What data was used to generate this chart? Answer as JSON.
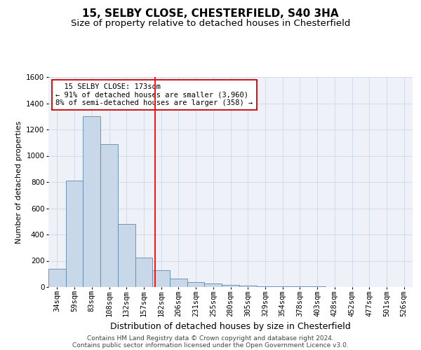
{
  "title1": "15, SELBY CLOSE, CHESTERFIELD, S40 3HA",
  "title2": "Size of property relative to detached houses in Chesterfield",
  "xlabel": "Distribution of detached houses by size in Chesterfield",
  "ylabel": "Number of detached properties",
  "categories": [
    "34sqm",
    "59sqm",
    "83sqm",
    "108sqm",
    "132sqm",
    "157sqm",
    "182sqm",
    "206sqm",
    "231sqm",
    "255sqm",
    "280sqm",
    "305sqm",
    "329sqm",
    "354sqm",
    "378sqm",
    "403sqm",
    "428sqm",
    "452sqm",
    "477sqm",
    "501sqm",
    "526sqm"
  ],
  "values": [
    140,
    810,
    1300,
    1090,
    480,
    225,
    130,
    65,
    35,
    25,
    18,
    12,
    8,
    5,
    5,
    5,
    2,
    2,
    2,
    2,
    2
  ],
  "bar_color": "#c8d8e8",
  "bar_edge_color": "#5a8ab0",
  "grid_color": "#d0d8e8",
  "background_color": "#eef2f8",
  "red_line_x": 5.64,
  "annotation_text": "  15 SELBY CLOSE: 173sqm\n← 91% of detached houses are smaller (3,960)\n8% of semi-detached houses are larger (358) →",
  "annotation_box_color": "#ffffff",
  "annotation_box_edge": "#cc0000",
  "ylim": [
    0,
    1600
  ],
  "yticks": [
    0,
    200,
    400,
    600,
    800,
    1000,
    1200,
    1400,
    1600
  ],
  "footnote1": "Contains HM Land Registry data © Crown copyright and database right 2024.",
  "footnote2": "Contains public sector information licensed under the Open Government Licence v3.0.",
  "title1_fontsize": 11,
  "title2_fontsize": 9.5,
  "xlabel_fontsize": 9,
  "ylabel_fontsize": 8,
  "tick_fontsize": 7.5,
  "annot_fontsize": 7.5,
  "footnote_fontsize": 6.5
}
